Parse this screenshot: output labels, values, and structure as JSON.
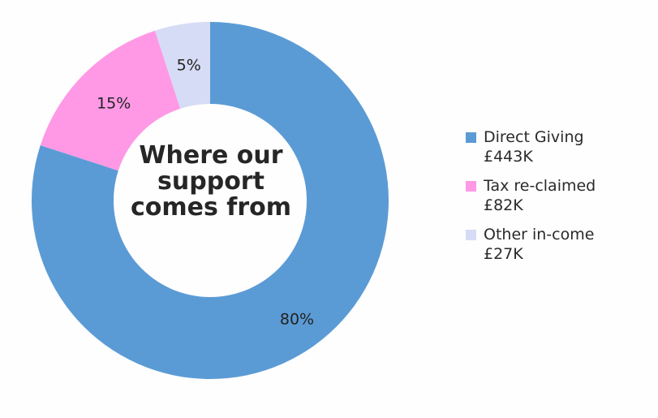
{
  "chart_data": {
    "type": "pie",
    "donut": true,
    "title": "Where our support comes from",
    "categories": [
      "Direct Giving £443K",
      "Tax re-claimed £82K",
      "Other in-come £27K"
    ],
    "values": [
      80,
      15,
      5
    ],
    "labels": [
      "80%",
      "15%",
      "5%"
    ],
    "colors": [
      "#5b9bd5",
      "#ff99e6",
      "#d6dcf5"
    ],
    "legend": "right",
    "grid": false
  },
  "legend_items": [
    {
      "text": "Direct Giving £443K",
      "color": "#5b9bd5"
    },
    {
      "text": "Tax re-claimed £82K",
      "color": "#ff99e6"
    },
    {
      "text": "Other in-come £27K",
      "color": "#d6dcf5"
    }
  ]
}
